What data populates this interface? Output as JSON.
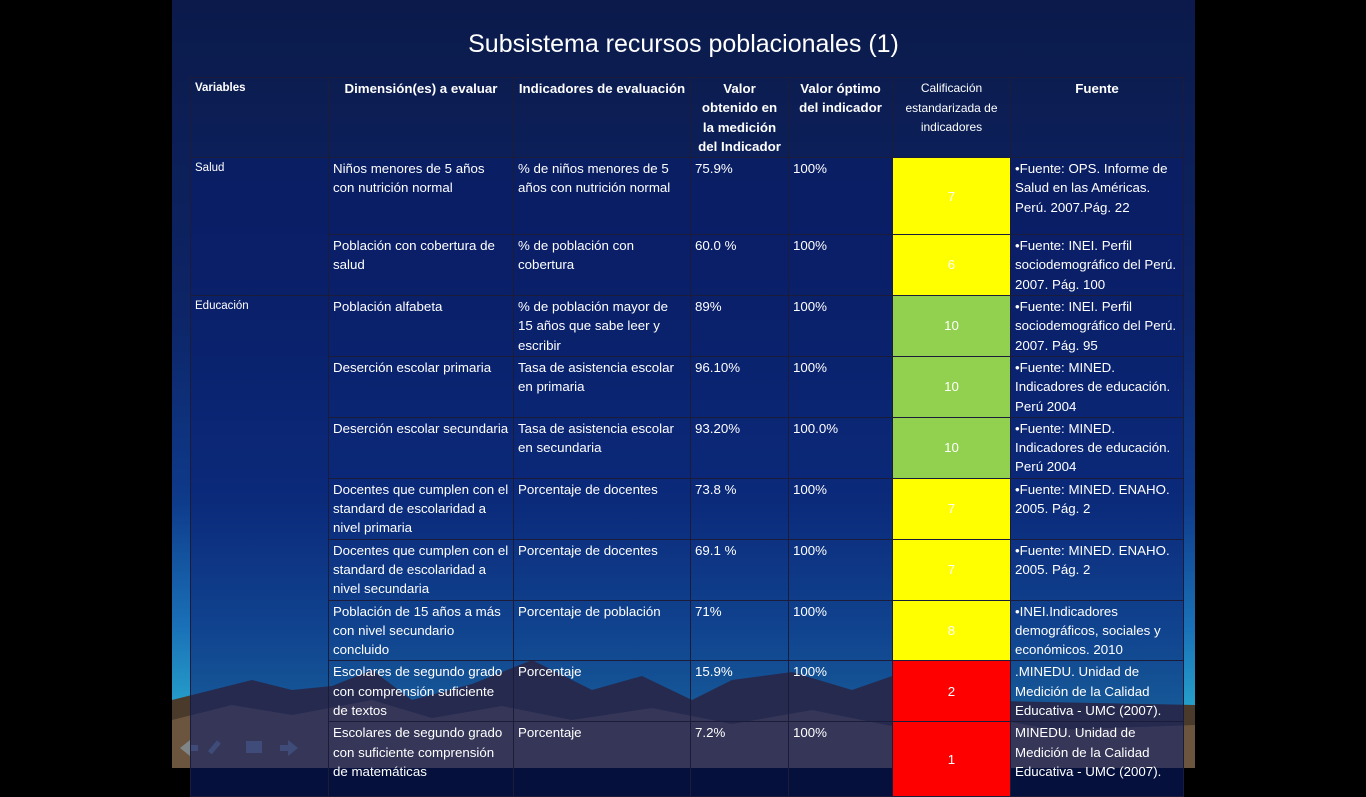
{
  "title": "Subsistema recursos poblacionales (1)",
  "table": {
    "header": [
      "Variables",
      "Dimensión(es) a evaluar",
      "Indicadores de evaluación",
      "Valor obtenido en la medición del Indicador",
      "Valor óptimo del indicador",
      "Calificación estandarizada de indicadores",
      "Fuente"
    ],
    "groups": [
      {
        "variable": "Salud",
        "rows": [
          {
            "cells": [
              "Niños menores de 5 años con nutrición normal",
              "% de niños menores de 5 años con nutrición normal",
              "75.9%",
              "100%",
              "7",
              "•Fuente: OPS. Informe de Salud en las Américas. Perú. 2007.Pág. 22"
            ],
            "color": "#ffff00"
          },
          {
            "cells": [
              "Población con cobertura de salud",
              "% de población con cobertura",
              "60.0 %",
              "100%",
              "6",
              "•Fuente: INEI.  Perfil sociodemográfico del Perú. 2007. Pág. 100"
            ],
            "color": "#ffff00"
          }
        ]
      },
      {
        "variable": "Educación",
        "rows": [
          {
            "cells": [
              "Población alfabeta",
              "% de población mayor de 15 años que sabe leer y escribir",
              "89%",
              "100%",
              "10",
              "•Fuente: INEI.  Perfil sociodemográfico del Perú. 2007. Pág. 95"
            ],
            "color": "#92d050"
          },
          {
            "cells": [
              "Deserción escolar primaria",
              "Tasa de asistencia escolar en primaria",
              "96.10%",
              "100%",
              "10",
              "•Fuente: MINED. Indicadores de educación. Perú 2004"
            ],
            "color": "#92d050"
          },
          {
            "cells": [
              "Deserción escolar secundaria",
              "Tasa de asistencia escolar en secundaria",
              "93.20%",
              "100.0%",
              "10",
              "•Fuente: MINED. Indicadores de educación. Perú 2004"
            ],
            "color": "#92d050"
          },
          {
            "cells": [
              "Docentes que cumplen con el standard de escolaridad a nivel primaria",
              "Porcentaje de docentes",
              "73.8 %",
              "100%",
              "7",
              "•Fuente: MINED. ENAHO.  2005. Pág. 2"
            ],
            "color": "#ffff00"
          },
          {
            "cells": [
              "Docentes que cumplen con el standard de escolaridad a nivel secundaria",
              "Porcentaje de docentes",
              "69.1 %",
              "100%",
              "7",
              "•Fuente: MINED. ENAHO.  2005. Pág. 2"
            ],
            "color": "#ffff00"
          },
          {
            "cells": [
              "Población de 15 años a más con nivel secundario concluido",
              "Porcentaje de población",
              "71%",
              "100%",
              "8",
              "•INEI.Indicadores demográficos, sociales y económicos. 2010"
            ],
            "color": "#ffff00"
          },
          {
            "cells": [
              "Escolares de segundo grado con comprensión suficiente de textos",
              "Porcentaje",
              "15.9%",
              "100%",
              "2",
              ".MINEDU.  Unidad de Medición de la Calidad Educativa - UMC  (2007)."
            ],
            "color": "#ff0000"
          },
          {
            "cells": [
              "Escolares de segundo grado con suficiente comprensión de matemáticas",
              "Porcentaje",
              "7.2%",
              "100%",
              "1",
              "MINEDU.  Unidad de Medición de la Calidad Educativa - UMC  (2007)."
            ],
            "color": "#ff0000"
          }
        ]
      }
    ]
  }
}
